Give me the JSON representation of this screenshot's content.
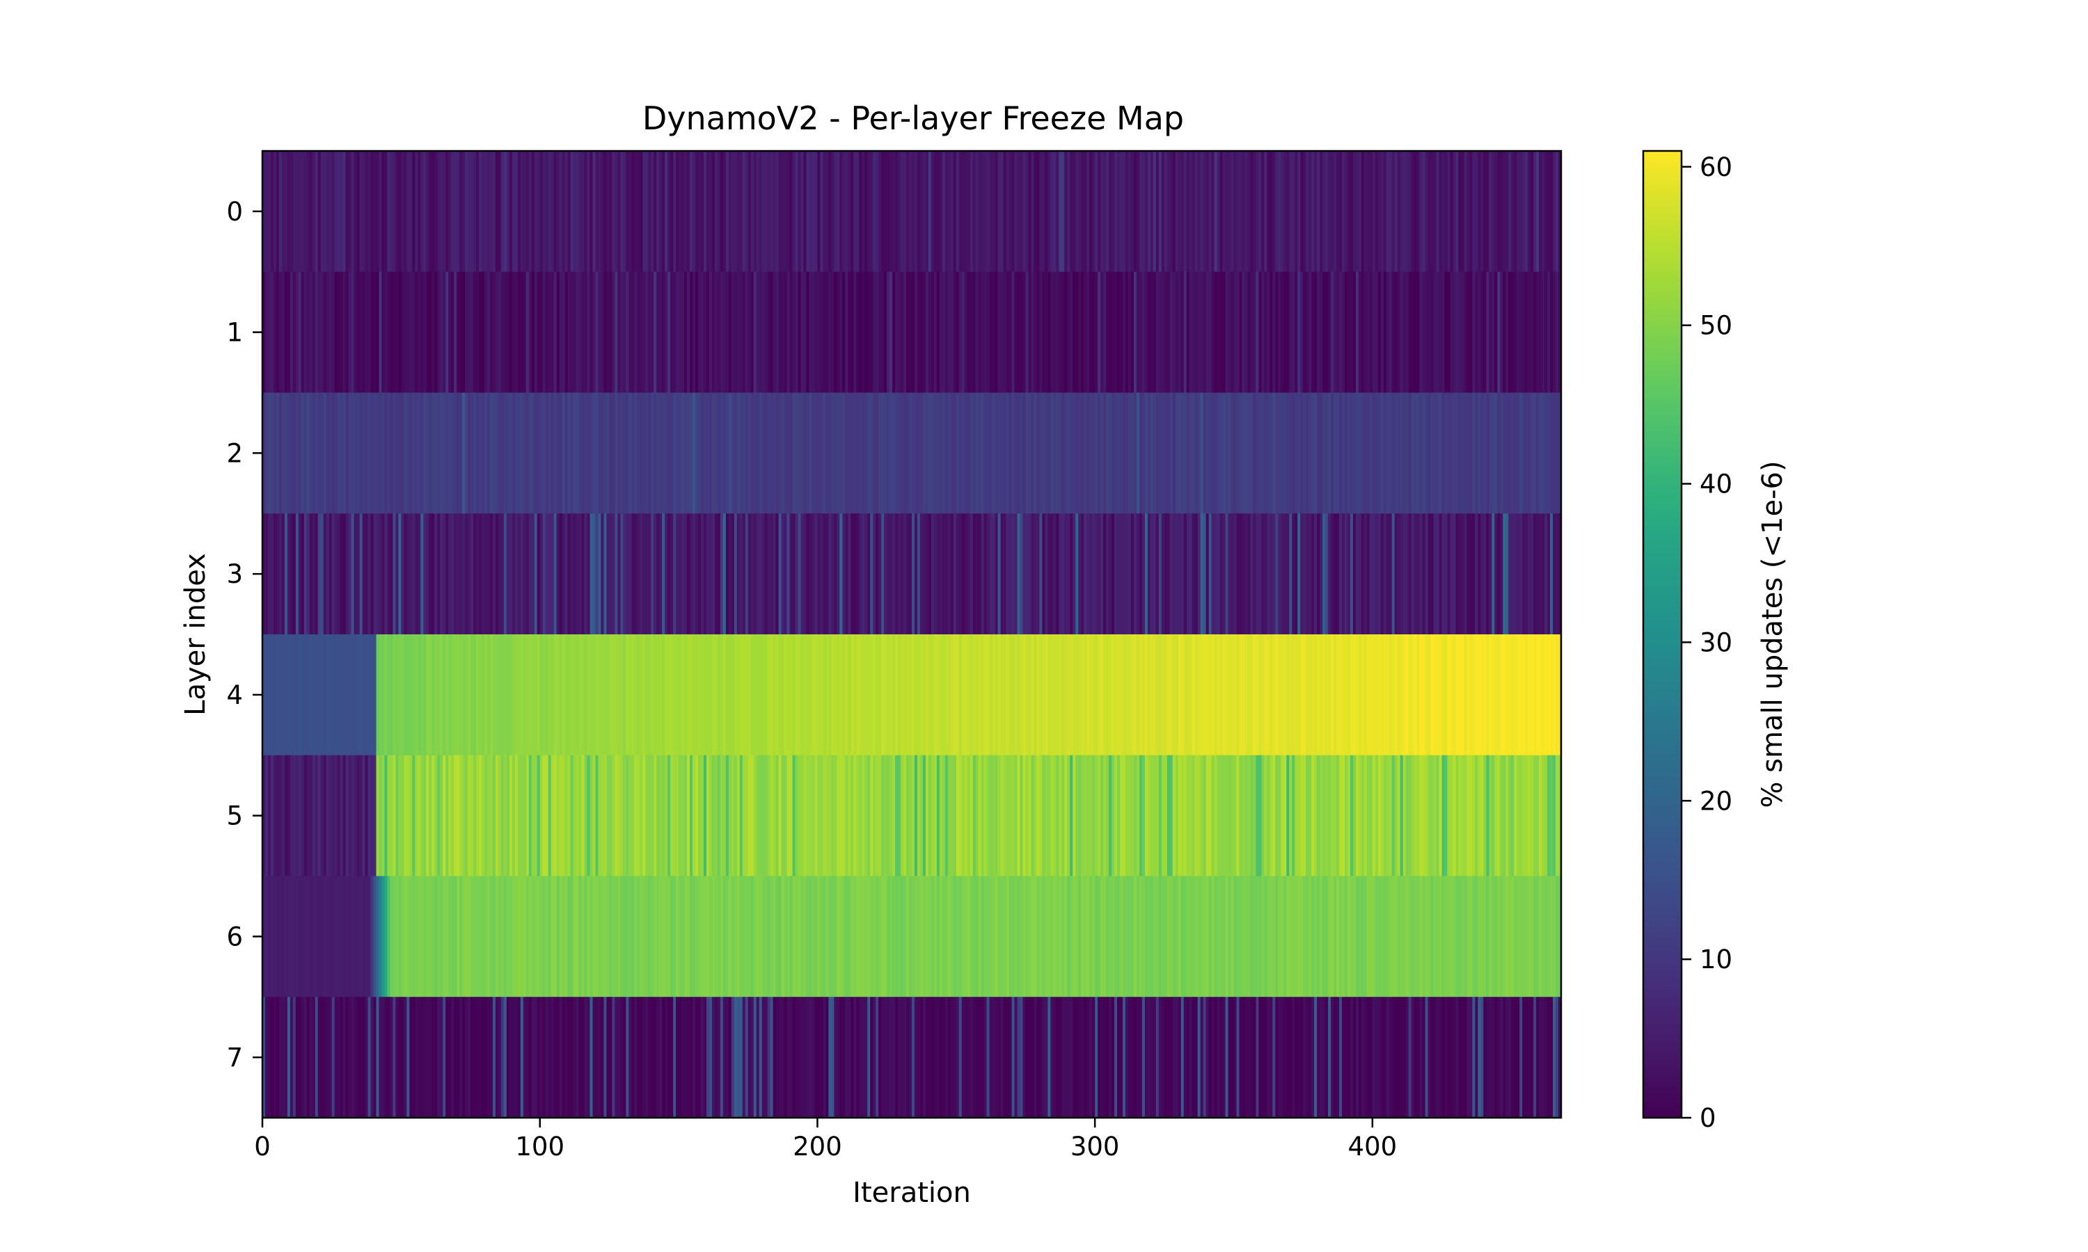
{
  "chart_data": {
    "type": "heatmap",
    "title": "DynamoV2 - Per-layer Freeze Map",
    "xlabel": "Iteration",
    "ylabel": "Layer index",
    "colorbar_label": "% small updates (<1e-6)",
    "colormap": "viridis",
    "x_range": [
      0,
      468
    ],
    "y_categories": [
      "0",
      "1",
      "2",
      "3",
      "4",
      "5",
      "6",
      "7"
    ],
    "x_ticks": [
      0,
      100,
      200,
      300,
      400
    ],
    "colorbar_ticks": [
      0,
      10,
      20,
      30,
      40,
      50,
      60
    ],
    "value_range": [
      0,
      61
    ],
    "grid": false,
    "layers": [
      {
        "layer": 0,
        "pattern": "noisy",
        "base_value": 4,
        "noise": 3,
        "spike_rate": 0.04,
        "spike_value": 9
      },
      {
        "layer": 1,
        "pattern": "noisy",
        "base_value": 2,
        "noise": 2.5,
        "spike_rate": 0.08,
        "spike_value": 8
      },
      {
        "layer": 2,
        "pattern": "noisy",
        "base_value": 11,
        "noise": 1.5,
        "spike_rate": 0.03,
        "spike_value": 15
      },
      {
        "layer": 3,
        "pattern": "noisy",
        "base_value": 4,
        "noise": 3,
        "spike_rate": 0.1,
        "spike_value": 18
      },
      {
        "layer": 4,
        "pattern": "step",
        "before_value": 15,
        "step_iteration": 41,
        "after_start": 48,
        "after_end": 61,
        "noise": 1
      },
      {
        "layer": 5,
        "pattern": "step_noisy",
        "before_value": 5,
        "step_iteration": 41,
        "after_value": 52,
        "noise": 3,
        "dip_rate": 0.15,
        "dip_value": 45
      },
      {
        "layer": 6,
        "pattern": "ramp_step",
        "before_value": 5,
        "ramp_start": 38,
        "ramp_end": 46,
        "after_value": 49,
        "noise": 1.5
      },
      {
        "layer": 7,
        "pattern": "noisy",
        "base_value": 1,
        "noise": 2,
        "spike_rate": 0.14,
        "spike_value": 16
      }
    ]
  }
}
